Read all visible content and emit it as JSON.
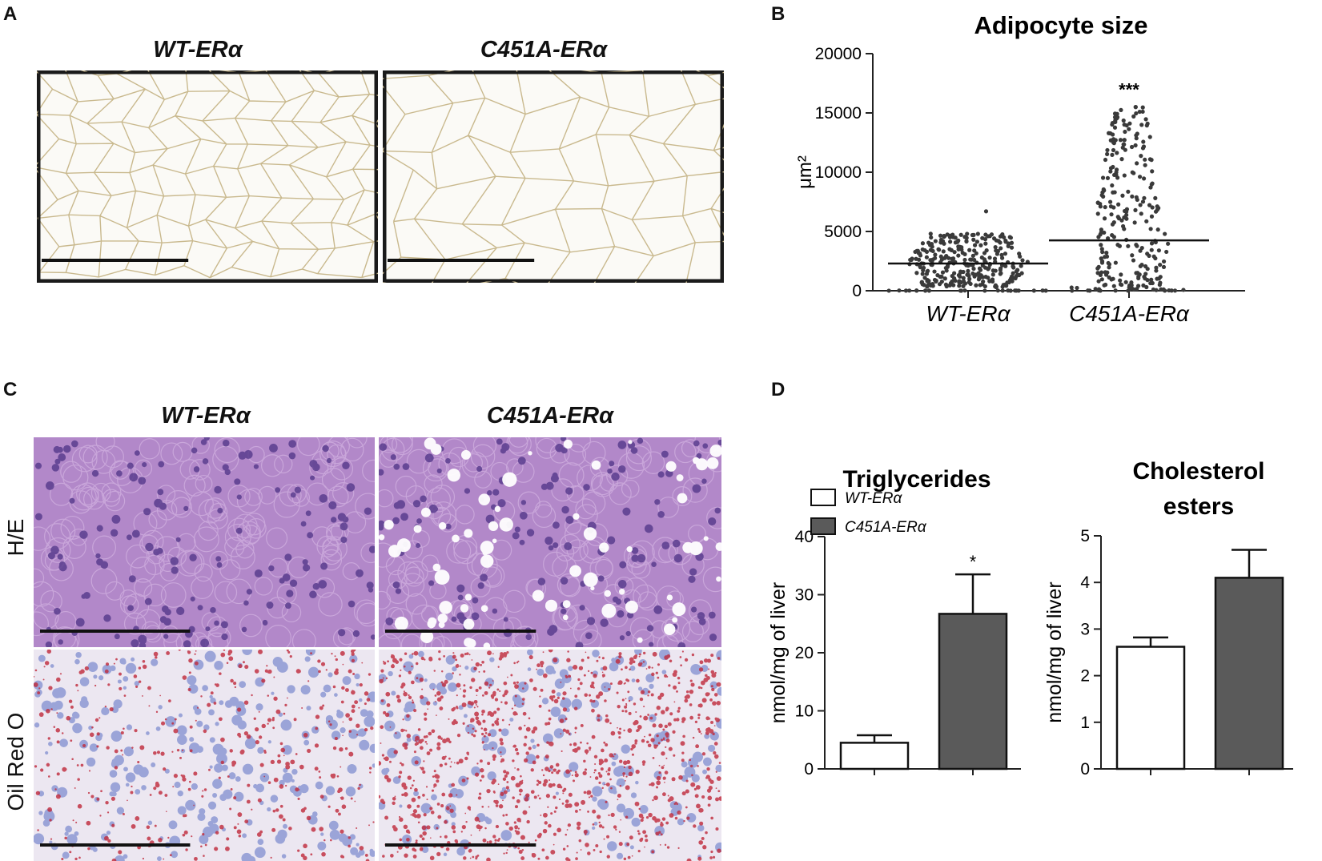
{
  "panels": {
    "a": "A",
    "b": "B",
    "c": "C",
    "d": "D"
  },
  "panel_a": {
    "left_title": "WT-ERα",
    "right_title": "C451A-ERα"
  },
  "panel_c": {
    "left_title": "WT-ERα",
    "right_title": "C451A-ERα",
    "row_top": "H/E",
    "row_bottom": "Oil Red O"
  },
  "colors": {
    "wt_fill": "#ffffff",
    "c451a_fill": "#5a5a5a",
    "dots": "#3a3a3a",
    "axis": "#222222",
    "he_tissue": "#b288c9",
    "oro_red": "#c0293a",
    "oro_blue": "#5a6fc4"
  },
  "chart_data": [
    {
      "id": "B",
      "type": "scatter",
      "title": "Adipocyte size",
      "ylabel": "μm²",
      "ylim": [
        0,
        20000
      ],
      "yticks": [
        0,
        5000,
        10000,
        15000,
        20000
      ],
      "categories": [
        "WT-ERα",
        "C451A-ERα"
      ],
      "series": [
        {
          "name": "WT-ERα",
          "mean": 2300,
          "max": 6700,
          "min": 0
        },
        {
          "name": "C451A-ERα",
          "mean": 4250,
          "max": 15500,
          "min": 0,
          "annotation": "***"
        }
      ]
    },
    {
      "id": "D1",
      "type": "bar",
      "title": "Triglycerides",
      "ylabel": "nmol/mg of liver",
      "ylim": [
        0,
        40
      ],
      "yticks": [
        0,
        10,
        20,
        30,
        40
      ],
      "categories": [
        "WT-ERα",
        "C451A-ERα"
      ],
      "values": [
        4.5,
        26.7
      ],
      "errors_upper": [
        5.8,
        33.5
      ],
      "annotations": [
        "",
        "*"
      ],
      "legend": [
        "WT-ERα",
        "C451A-ERα"
      ]
    },
    {
      "id": "D2",
      "type": "bar",
      "title_lines": [
        "Cholesterol",
        "esters"
      ],
      "ylabel": "nmol/mg of liver",
      "ylim": [
        0,
        5
      ],
      "yticks": [
        0,
        1,
        2,
        3,
        4,
        5
      ],
      "categories": [
        "WT-ERα",
        "C451A-ERα"
      ],
      "values": [
        2.62,
        4.1
      ],
      "errors_upper": [
        2.82,
        4.7
      ]
    }
  ]
}
